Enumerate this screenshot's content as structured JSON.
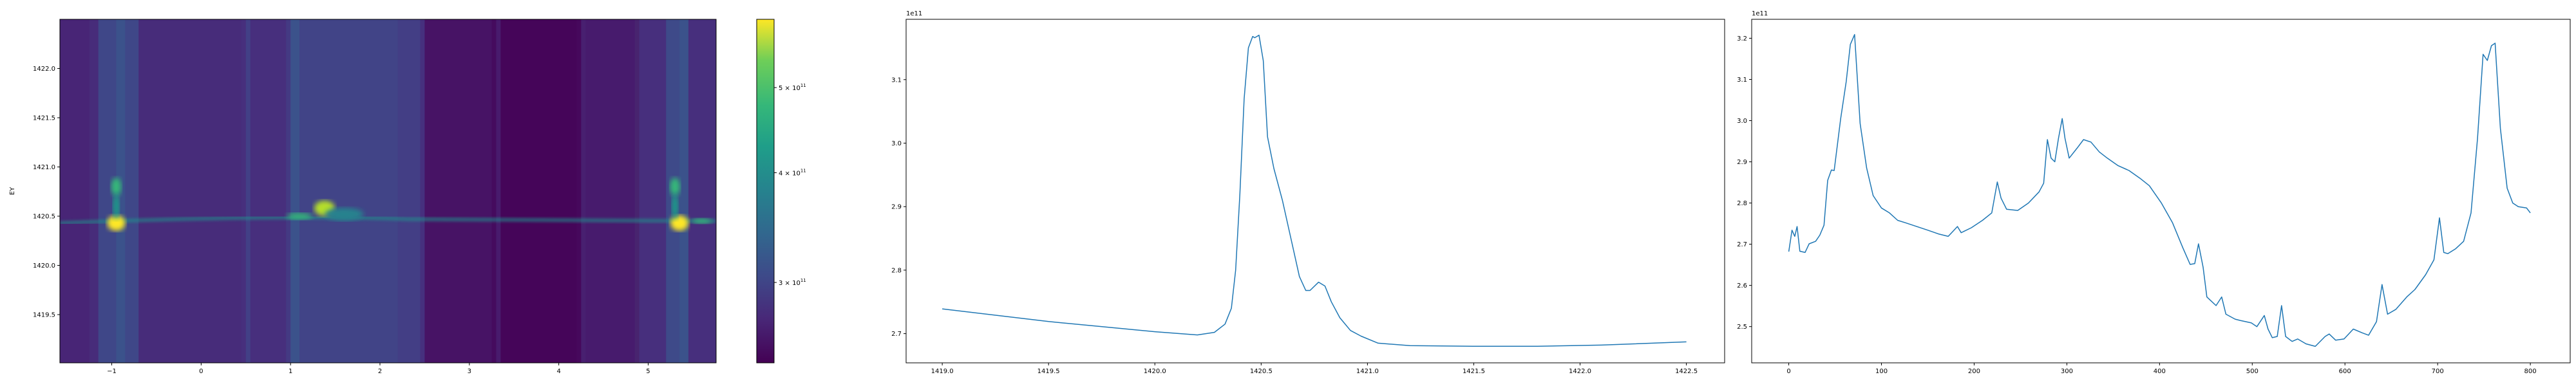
{
  "chart_data": [
    {
      "type": "heatmap",
      "xlim": [
        -1.58,
        5.76
      ],
      "ylim": [
        1419.01,
        1422.5
      ],
      "ylabel": "EY",
      "xticks": [
        -1,
        0,
        1,
        2,
        3,
        4,
        5
      ],
      "xtick_labels": [
        "−1",
        "0",
        "1",
        "2",
        "3",
        "4",
        "5"
      ],
      "yticks": [
        1419.5,
        1420.0,
        1420.5,
        1421.0,
        1421.5,
        1422.0
      ],
      "ytick_labels": [
        "1419.5",
        "1420.0",
        "1420.5",
        "1421.0",
        "1421.5",
        "1422.0"
      ],
      "colormap": "viridis",
      "colorbar": {
        "scale": "log",
        "range": [
          243000000000.0,
          598000000000.0
        ],
        "ticks": [
          300000000000.0,
          400000000000.0,
          500000000000.0
        ],
        "tick_labels": [
          {
            "mant": "3 × 10",
            "exp": "11"
          },
          {
            "mant": "4 × 10",
            "exp": "11"
          },
          {
            "mant": "5 × 10",
            "exp": "11"
          }
        ]
      }
    },
    {
      "type": "line",
      "offset_text": "1e11",
      "xlim": [
        1418.83,
        1422.68
      ],
      "ylim": [
        2.654,
        3.195
      ],
      "xticks": [
        1419.0,
        1419.5,
        1420.0,
        1420.5,
        1421.0,
        1421.5,
        1422.0,
        1422.5
      ],
      "xtick_labels": [
        "1419.0",
        "1419.5",
        "1420.0",
        "1420.5",
        "1421.0",
        "1421.5",
        "1422.0",
        "1422.5"
      ],
      "yticks": [
        2.7,
        2.8,
        2.9,
        3.0,
        3.1
      ],
      "ytick_labels": [
        "2.7",
        "2.8",
        "2.9",
        "3.0",
        "3.1"
      ],
      "color": "#1f77b4",
      "x": [
        1419.0,
        1419.5,
        1420.0,
        1420.2,
        1420.28,
        1420.33,
        1420.36,
        1420.38,
        1420.4,
        1420.42,
        1420.44,
        1420.46,
        1420.47,
        1420.49,
        1420.51,
        1420.53,
        1420.56,
        1420.6,
        1420.64,
        1420.68,
        1420.71,
        1420.73,
        1420.77,
        1420.8,
        1420.83,
        1420.87,
        1420.92,
        1420.97,
        1421.05,
        1421.2,
        1421.5,
        1421.8,
        1422.1,
        1422.5
      ],
      "y": [
        2.739,
        2.719,
        2.703,
        2.698,
        2.702,
        2.715,
        2.74,
        2.8,
        2.92,
        3.07,
        3.15,
        3.168,
        3.166,
        3.17,
        3.13,
        3.01,
        2.96,
        2.91,
        2.85,
        2.79,
        2.768,
        2.768,
        2.781,
        2.775,
        2.75,
        2.725,
        2.705,
        2.696,
        2.685,
        2.681,
        2.68,
        2.68,
        2.682,
        2.687
      ]
    },
    {
      "type": "line",
      "offset_text": "1e11",
      "xlim": [
        -40,
        843
      ],
      "ylim": [
        2.412,
        3.246
      ],
      "xticks": [
        0,
        100,
        200,
        300,
        400,
        500,
        600,
        700,
        800
      ],
      "xtick_labels": [
        "0",
        "100",
        "200",
        "300",
        "400",
        "500",
        "600",
        "700",
        "800"
      ],
      "yticks": [
        2.5,
        2.6,
        2.7,
        2.8,
        2.9,
        3.0,
        3.1,
        3.2
      ],
      "ytick_labels": [
        "2.5",
        "2.6",
        "2.7",
        "2.8",
        "2.9",
        "3.0",
        "3.1",
        "3.2"
      ],
      "color": "#1f77b4",
      "x": [
        0,
        3.5,
        6.5,
        9,
        12,
        17.6,
        22,
        29,
        33.5,
        38,
        42,
        46,
        49,
        56,
        62,
        66.4,
        71,
        77,
        84,
        91,
        100,
        108.6,
        117.5,
        126,
        138,
        150,
        161.5,
        172,
        182,
        186,
        197,
        209,
        219,
        225,
        229,
        235,
        247,
        258.5,
        270,
        275,
        279,
        283,
        287,
        291,
        295,
        298,
        302.5,
        311,
        318,
        326,
        335,
        343.6,
        355,
        367,
        379,
        389,
        402,
        414,
        425,
        433,
        438,
        442,
        447,
        451,
        461,
        467,
        471.6,
        481.5,
        487,
        499,
        505,
        513,
        517,
        521.6,
        527,
        531.6,
        536,
        543,
        549,
        558,
        568,
        578.6,
        583,
        590,
        599,
        609,
        618.5,
        625.5,
        634,
        640,
        646,
        655,
        666.7,
        675.5,
        687,
        696,
        702,
        706.6,
        711,
        719.5,
        728,
        736,
        743,
        749,
        753.6,
        758,
        762,
        767.7,
        775,
        781,
        787,
        796,
        800
      ],
      "y": [
        2.682,
        2.734,
        2.719,
        2.743,
        2.683,
        2.68,
        2.701,
        2.707,
        2.722,
        2.746,
        2.855,
        2.88,
        2.879,
        3.005,
        3.095,
        3.185,
        3.209,
        2.993,
        2.885,
        2.818,
        2.788,
        2.776,
        2.758,
        2.752,
        2.743,
        2.734,
        2.725,
        2.719,
        2.743,
        2.728,
        2.74,
        2.758,
        2.776,
        2.851,
        2.812,
        2.785,
        2.782,
        2.8,
        2.827,
        2.848,
        2.954,
        2.909,
        2.9,
        2.957,
        3.005,
        2.957,
        2.909,
        2.933,
        2.954,
        2.948,
        2.924,
        2.909,
        2.891,
        2.879,
        2.86,
        2.842,
        2.8,
        2.752,
        2.692,
        2.651,
        2.653,
        2.701,
        2.644,
        2.572,
        2.551,
        2.572,
        2.53,
        2.518,
        2.515,
        2.509,
        2.5,
        2.527,
        2.494,
        2.473,
        2.476,
        2.551,
        2.476,
        2.464,
        2.47,
        2.458,
        2.452,
        2.476,
        2.482,
        2.467,
        2.47,
        2.494,
        2.485,
        2.479,
        2.512,
        2.602,
        2.53,
        2.542,
        2.572,
        2.59,
        2.626,
        2.662,
        2.764,
        2.68,
        2.677,
        2.689,
        2.707,
        2.776,
        2.957,
        3.161,
        3.146,
        3.182,
        3.188,
        2.981,
        2.836,
        2.8,
        2.791,
        2.788,
        2.776
      ]
    }
  ]
}
